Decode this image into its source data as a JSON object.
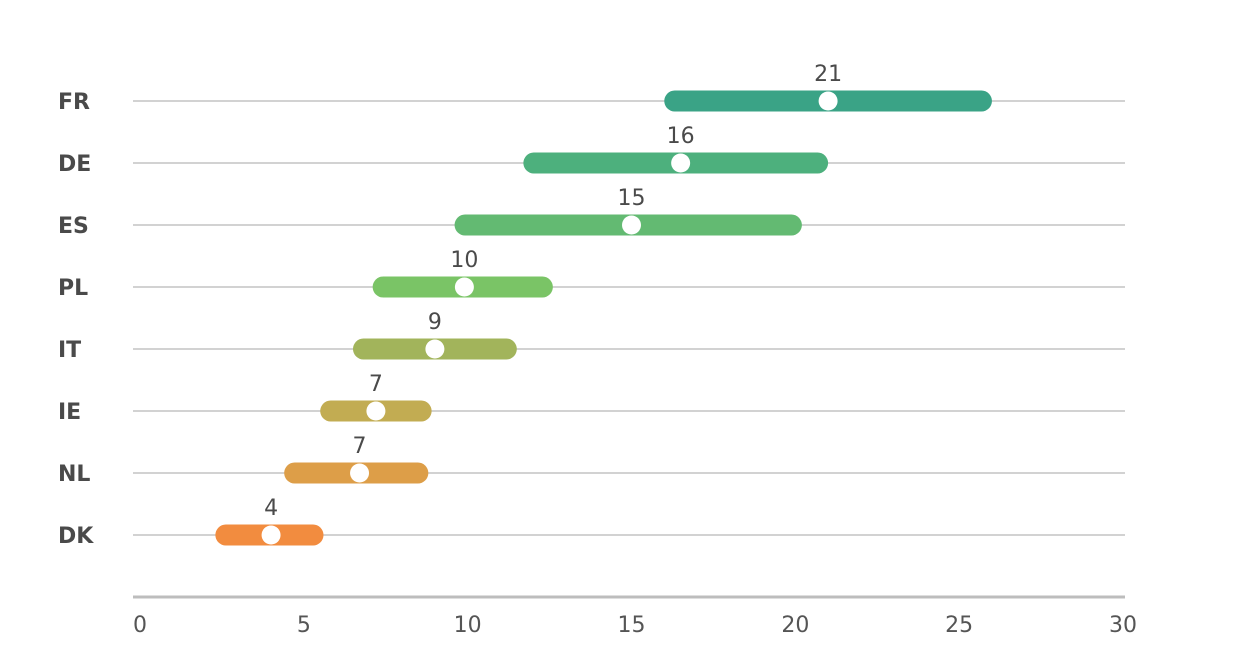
{
  "chart_data": {
    "type": "range-dot",
    "categories": [
      "FR",
      "DE",
      "ES",
      "PL",
      "IT",
      "IE",
      "NL",
      "DK"
    ],
    "values": [
      21,
      16,
      15,
      10,
      9,
      7,
      7,
      4
    ],
    "range_low": [
      16,
      11.7,
      9.6,
      7.1,
      6.5,
      5.5,
      4.4,
      2.3
    ],
    "range_high": [
      26,
      21,
      20.2,
      12.6,
      11.5,
      8.9,
      8.8,
      5.6
    ],
    "point_values": [
      21,
      16.5,
      15,
      9.9,
      9,
      7.2,
      6.7,
      4
    ],
    "colors": [
      "#3aa386",
      "#4db07d",
      "#63ba72",
      "#7ac466",
      "#a2b45b",
      "#c2ac52",
      "#dd9e48",
      "#f28c3f"
    ],
    "xlim": [
      0,
      30
    ],
    "xticks": [
      0,
      5,
      10,
      15,
      20,
      25,
      30
    ],
    "grid": true
  }
}
